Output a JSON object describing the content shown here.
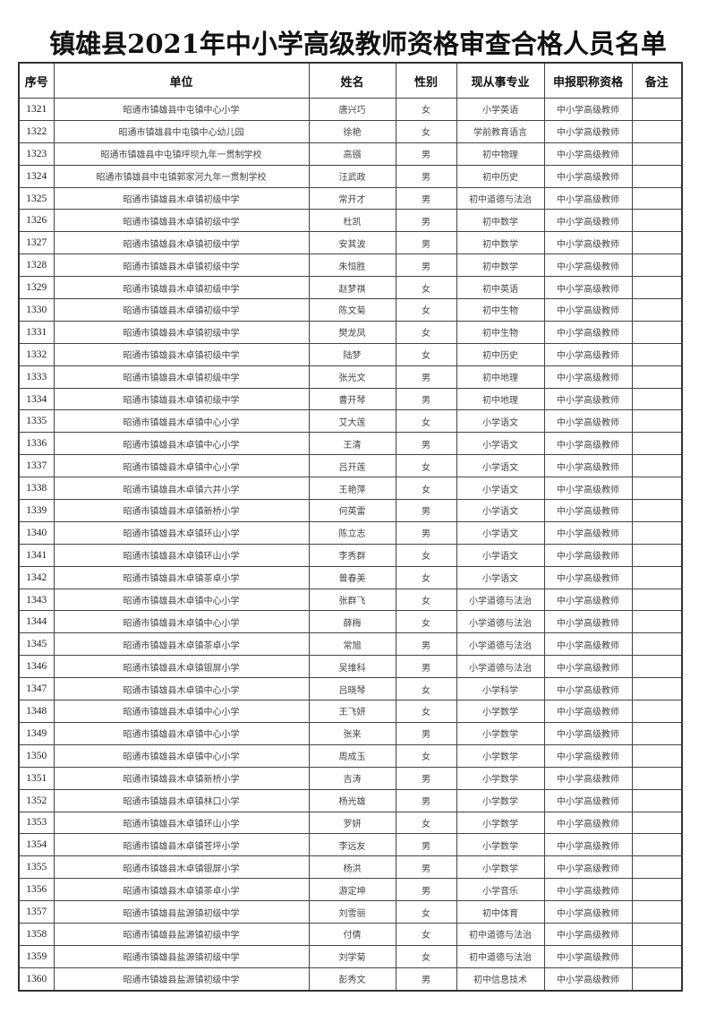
{
  "title": "镇雄县2021年中小学高级教师资格审查合格人员名单",
  "columns": [
    "序号",
    "单位",
    "姓名",
    "性别",
    "现从事专业",
    "申报职称资格",
    "备注"
  ],
  "rows": [
    [
      "1321",
      "昭通市镇雄县中屯镇中心小学",
      "唐兴巧",
      "女",
      "小学英语",
      "中小学高级教师",
      ""
    ],
    [
      "1322",
      "昭通市镇雄县中屯镇中心幼儿园",
      "徐艳",
      "女",
      "学前教育语言",
      "中小学高级教师",
      ""
    ],
    [
      "1323",
      "昭通市镇雄县中屯镇坪坝九年一贯制学校",
      "高镪",
      "男",
      "初中物理",
      "中小学高级教师",
      ""
    ],
    [
      "1324",
      "昭通市镇雄县中屯镇郭家河九年一贯制学校",
      "汪武政",
      "男",
      "初中历史",
      "中小学高级教师",
      ""
    ],
    [
      "1325",
      "昭通市镇雄县木卓镇初级中学",
      "常开才",
      "男",
      "初中道德与法治",
      "中小学高级教师",
      ""
    ],
    [
      "1326",
      "昭通市镇雄县木卓镇初级中学",
      "杜凯",
      "男",
      "初中数学",
      "中小学高级教师",
      ""
    ],
    [
      "1327",
      "昭通市镇雄县木卓镇初级中学",
      "安其波",
      "男",
      "初中数学",
      "中小学高级教师",
      ""
    ],
    [
      "1328",
      "昭通市镇雄县木卓镇初级中学",
      "朱恒胜",
      "男",
      "初中数学",
      "中小学高级教师",
      ""
    ],
    [
      "1329",
      "昭通市镇雄县木卓镇初级中学",
      "赵梦祺",
      "女",
      "初中英语",
      "中小学高级教师",
      ""
    ],
    [
      "1330",
      "昭通市镇雄县木卓镇初级中学",
      "陈文菊",
      "女",
      "初中生物",
      "中小学高级教师",
      ""
    ],
    [
      "1331",
      "昭通市镇雄县木卓镇初级中学",
      "樊龙凤",
      "女",
      "初中生物",
      "中小学高级教师",
      ""
    ],
    [
      "1332",
      "昭通市镇雄县木卓镇初级中学",
      "陆梦",
      "女",
      "初中历史",
      "中小学高级教师",
      ""
    ],
    [
      "1333",
      "昭通市镇雄县木卓镇初级中学",
      "张光文",
      "男",
      "初中地理",
      "中小学高级教师",
      ""
    ],
    [
      "1334",
      "昭通市镇雄县木卓镇初级中学",
      "曹开琴",
      "男",
      "初中地理",
      "中小学高级教师",
      ""
    ],
    [
      "1335",
      "昭通市镇雄县木卓镇中心小学",
      "艾大莲",
      "女",
      "小学语文",
      "中小学高级教师",
      ""
    ],
    [
      "1336",
      "昭通市镇雄县木卓镇中心小学",
      "王清",
      "男",
      "小学语文",
      "中小学高级教师",
      ""
    ],
    [
      "1337",
      "昭通市镇雄县木卓镇中心小学",
      "吕开莲",
      "女",
      "小学语文",
      "中小学高级教师",
      ""
    ],
    [
      "1338",
      "昭通市镇雄县木卓镇六井小学",
      "王艳萍",
      "女",
      "小学语文",
      "中小学高级教师",
      ""
    ],
    [
      "1339",
      "昭通市镇雄县木卓镇新桥小学",
      "何英雷",
      "男",
      "小学语文",
      "中小学高级教师",
      ""
    ],
    [
      "1340",
      "昭通市镇雄县木卓镇环山小学",
      "陈立志",
      "男",
      "小学语文",
      "中小学高级教师",
      ""
    ],
    [
      "1341",
      "昭通市镇雄县木卓镇环山小学",
      "李秀群",
      "女",
      "小学语文",
      "中小学高级教师",
      ""
    ],
    [
      "1342",
      "昭通市镇雄县木卓镇茶卓小学",
      "曾春美",
      "女",
      "小学语文",
      "中小学高级教师",
      ""
    ],
    [
      "1343",
      "昭通市镇雄县木卓镇中心小学",
      "张群飞",
      "女",
      "小学道德与法治",
      "中小学高级教师",
      ""
    ],
    [
      "1344",
      "昭通市镇雄县木卓镇中心小学",
      "薛梅",
      "女",
      "小学道德与法治",
      "中小学高级教师",
      ""
    ],
    [
      "1345",
      "昭通市镇雄县木卓镇茶卓小学",
      "常旭",
      "男",
      "小学道德与法治",
      "中小学高级教师",
      ""
    ],
    [
      "1346",
      "昭通市镇雄县木卓镇银屏小学",
      "吴维科",
      "男",
      "小学道德与法治",
      "中小学高级教师",
      ""
    ],
    [
      "1347",
      "昭通市镇雄县木卓镇中心小学",
      "吕晓琴",
      "女",
      "小学科学",
      "中小学高级教师",
      ""
    ],
    [
      "1348",
      "昭通市镇雄县木卓镇中心小学",
      "王飞妍",
      "女",
      "小学数学",
      "中小学高级教师",
      ""
    ],
    [
      "1349",
      "昭通市镇雄县木卓镇中心小学",
      "张来",
      "男",
      "小学数学",
      "中小学高级教师",
      ""
    ],
    [
      "1350",
      "昭通市镇雄县木卓镇中心小学",
      "周成玉",
      "女",
      "小学数学",
      "中小学高级教师",
      ""
    ],
    [
      "1351",
      "昭通市镇雄县木卓镇新桥小学",
      "吉涛",
      "男",
      "小学数学",
      "中小学高级教师",
      ""
    ],
    [
      "1352",
      "昭通市镇雄县木卓镇林口小学",
      "杨光雄",
      "男",
      "小学数学",
      "中小学高级教师",
      ""
    ],
    [
      "1353",
      "昭通市镇雄县木卓镇环山小学",
      "罗妍",
      "女",
      "小学数学",
      "中小学高级教师",
      ""
    ],
    [
      "1354",
      "昭通市镇雄县木卓镇苍坪小学",
      "李远友",
      "男",
      "小学数学",
      "中小学高级教师",
      ""
    ],
    [
      "1355",
      "昭通市镇雄县木卓镇银屏小学",
      "杨洪",
      "男",
      "小学数学",
      "中小学高级教师",
      ""
    ],
    [
      "1356",
      "昭通市镇雄县木卓镇茶卓小学",
      "游定坤",
      "男",
      "小学音乐",
      "中小学高级教师",
      ""
    ],
    [
      "1357",
      "昭通市镇雄县盐源镇初级中学",
      "刘雪丽",
      "女",
      "初中体育",
      "中小学高级教师",
      ""
    ],
    [
      "1358",
      "昭通市镇雄县盐源镇初级中学",
      "付倩",
      "女",
      "初中道德与法治",
      "中小学高级教师",
      ""
    ],
    [
      "1359",
      "昭通市镇雄县盐源镇初级中学",
      "刘学菊",
      "女",
      "初中道德与法治",
      "中小学高级教师",
      ""
    ],
    [
      "1360",
      "昭通市镇雄县盐源镇初级中学",
      "彭秀文",
      "男",
      "初中信息技术",
      "中小学高级教师",
      ""
    ]
  ]
}
